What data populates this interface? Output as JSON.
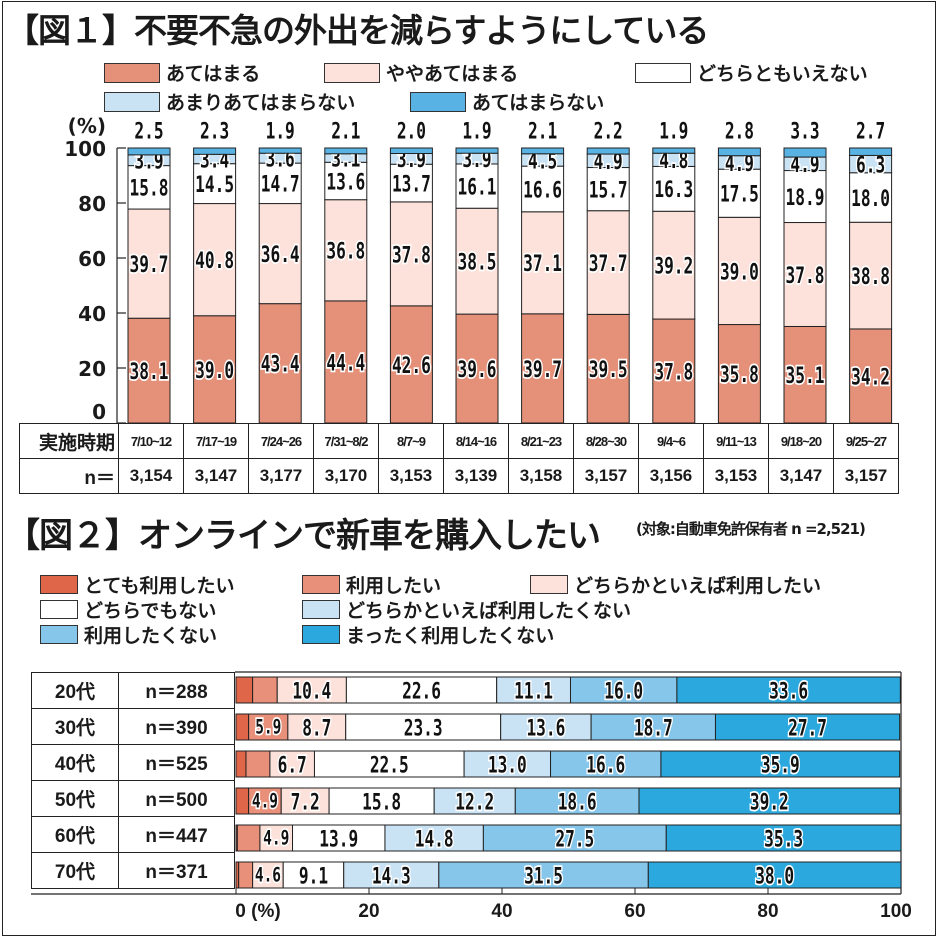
{
  "figure1": {
    "title": "【図１】不要不急の外出を減らすようにしている",
    "legend": [
      {
        "label": "あてはまる",
        "color": "#E5917A"
      },
      {
        "label": "ややあてはまる",
        "color": "#FCE2DA"
      },
      {
        "label": "どちらともいえない",
        "color": "#FFFFFF"
      },
      {
        "label": "あまりあてはまらない",
        "color": "#C9E3F5"
      },
      {
        "label": "あてはまらない",
        "color": "#58B3E4"
      }
    ],
    "y_unit": "(%)",
    "table_headers": {
      "period": "実施時期",
      "n": "n＝"
    }
  },
  "figure2": {
    "title": "【図２】オンラインで新車を購入したい",
    "subtitle": "(対象:自動車免許保有者 n =2,521)",
    "legend": [
      {
        "label": "とても利用したい",
        "color": "#E0664A"
      },
      {
        "label": "利用したい",
        "color": "#E8907A"
      },
      {
        "label": "どちらかといえば利用したい",
        "color": "#FCE2DA"
      },
      {
        "label": "どちらでもない",
        "color": "#FFFFFF"
      },
      {
        "label": "どちらかといえば利用したくない",
        "color": "#C9E3F5"
      },
      {
        "label": "利用したくない",
        "color": "#86C6EA"
      },
      {
        "label": "まったく利用したくない",
        "color": "#2BA9DE"
      }
    ]
  },
  "chart_data": [
    {
      "type": "bar",
      "stacked": true,
      "orientation": "vertical",
      "title": "【図１】不要不急の外出を減らすようにしている",
      "ylabel": "(%)",
      "ylim": [
        0,
        100
      ],
      "yticks": [
        "0",
        "20",
        "40",
        "60",
        "80",
        "100"
      ],
      "legend_position": "top",
      "categories": [
        "7/10~12",
        "7/17~19",
        "7/24~26",
        "7/31~8/2",
        "8/7~9",
        "8/14~16",
        "8/21~23",
        "8/28~30",
        "9/4~6",
        "9/11~13",
        "9/18~20",
        "9/25~27"
      ],
      "n": [
        "3,154",
        "3,147",
        "3,177",
        "3,170",
        "3,153",
        "3,139",
        "3,158",
        "3,157",
        "3,156",
        "3,153",
        "3,147",
        "3,157"
      ],
      "series": [
        {
          "name": "あてはまる",
          "values": [
            38.1,
            39.0,
            43.4,
            44.4,
            42.6,
            39.6,
            39.7,
            39.5,
            37.8,
            35.8,
            35.1,
            34.2
          ]
        },
        {
          "name": "ややあてはまる",
          "values": [
            39.7,
            40.8,
            36.4,
            36.8,
            37.8,
            38.5,
            37.1,
            37.7,
            39.2,
            39.0,
            37.8,
            38.8
          ]
        },
        {
          "name": "どちらともいえない",
          "values": [
            15.8,
            14.5,
            14.7,
            13.6,
            13.7,
            16.1,
            16.6,
            15.7,
            16.3,
            17.5,
            18.9,
            18.0
          ]
        },
        {
          "name": "あまりあてはまらない",
          "values": [
            3.9,
            3.4,
            3.6,
            3.1,
            3.9,
            3.9,
            4.5,
            4.9,
            4.8,
            4.9,
            4.9,
            6.3
          ]
        },
        {
          "name": "あてはまらない",
          "values": [
            2.5,
            2.3,
            1.9,
            2.1,
            2.0,
            1.9,
            2.1,
            2.2,
            1.9,
            2.8,
            3.3,
            2.7
          ]
        }
      ]
    },
    {
      "type": "bar",
      "stacked": true,
      "orientation": "horizontal",
      "title": "【図２】オンラインで新車を購入したい",
      "subtitle": "(対象:自動車免許保有者 n =2,521)",
      "xlabel": "(%)",
      "xlim": [
        0,
        100
      ],
      "xticks": [
        "0 (%)",
        "20",
        "40",
        "60",
        "80",
        "100"
      ],
      "legend_position": "top",
      "categories": [
        "20代",
        "30代",
        "40代",
        "50代",
        "60代",
        "70代"
      ],
      "n": [
        "n＝288",
        "n＝390",
        "n＝525",
        "n＝500",
        "n＝447",
        "n＝371"
      ],
      "label_threshold": 4.5,
      "series": [
        {
          "name": "とても利用したい",
          "values": [
            2.5,
            1.9,
            1.5,
            1.9,
            0.2,
            0.4
          ]
        },
        {
          "name": "利用したい",
          "values": [
            3.7,
            5.9,
            3.6,
            4.9,
            3.4,
            2.1
          ]
        },
        {
          "name": "どちらかといえば利用したい",
          "values": [
            10.4,
            8.7,
            6.7,
            7.2,
            4.9,
            4.6
          ]
        },
        {
          "name": "どちらでもない",
          "values": [
            22.6,
            23.3,
            22.5,
            15.8,
            13.9,
            9.1
          ]
        },
        {
          "name": "どちらかといえば利用したくない",
          "values": [
            11.1,
            13.6,
            13.0,
            12.2,
            14.8,
            14.3
          ]
        },
        {
          "name": "利用したくない",
          "values": [
            16.0,
            18.7,
            16.6,
            18.6,
            27.5,
            31.5
          ]
        },
        {
          "name": "まったく利用したくない",
          "values": [
            33.6,
            27.7,
            35.9,
            39.2,
            35.3,
            38.0
          ]
        }
      ]
    }
  ]
}
